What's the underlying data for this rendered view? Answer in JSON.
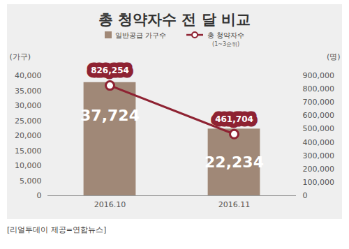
{
  "chart_data": {
    "type": "bar",
    "title": "총 청약자수 전 달 비교",
    "categories": [
      "2016.10",
      "2016.11"
    ],
    "series": [
      {
        "name": "일반공급 가구수",
        "type": "bar",
        "color": "#a08877",
        "values": [
          37724,
          22234
        ],
        "value_labels": [
          "37,724",
          "22,234"
        ]
      },
      {
        "name": "총 청약자수",
        "type": "line",
        "axis": "y2",
        "color": "#8e2232",
        "marker": "circle",
        "values": [
          826254,
          461704
        ],
        "value_labels": [
          "826,254",
          "461,704"
        ]
      }
    ],
    "annotations": [
      "(1~3순위)"
    ],
    "y_label": "(가구)",
    "y2_label": "(명)",
    "ylim": [
      0,
      40000
    ],
    "yticks": [
      0,
      {
        "value": 5000,
        "label": "5,000"
      },
      {
        "value": 10000,
        "label": "10,000"
      },
      {
        "value": 15000,
        "label": "15,000"
      },
      {
        "value": 20000,
        "label": "20,000"
      },
      {
        "value": 25000,
        "label": "25,000"
      },
      {
        "value": 30000,
        "label": "30,000"
      },
      {
        "value": 35000,
        "label": "35,000"
      },
      {
        "value": 40000,
        "label": "40,000"
      }
    ],
    "y2lim": [
      0,
      900000
    ],
    "y2ticks": [
      0,
      {
        "value": 100000,
        "label": "100,000"
      },
      {
        "value": 200000,
        "label": "200,000"
      },
      {
        "value": 300000,
        "label": "300,000"
      },
      {
        "value": 400000,
        "label": "400,000"
      },
      {
        "value": 500000,
        "label": "500,000"
      },
      {
        "value": 600000,
        "label": "600,000"
      },
      {
        "value": 700000,
        "label": "700,000"
      },
      {
        "value": 800000,
        "label": "800,000"
      },
      {
        "value": 900000,
        "label": "900,000"
      }
    ],
    "data_labels": true,
    "legend": "top",
    "caption": "[리얼투데이 제공=연합뉴스]"
  }
}
